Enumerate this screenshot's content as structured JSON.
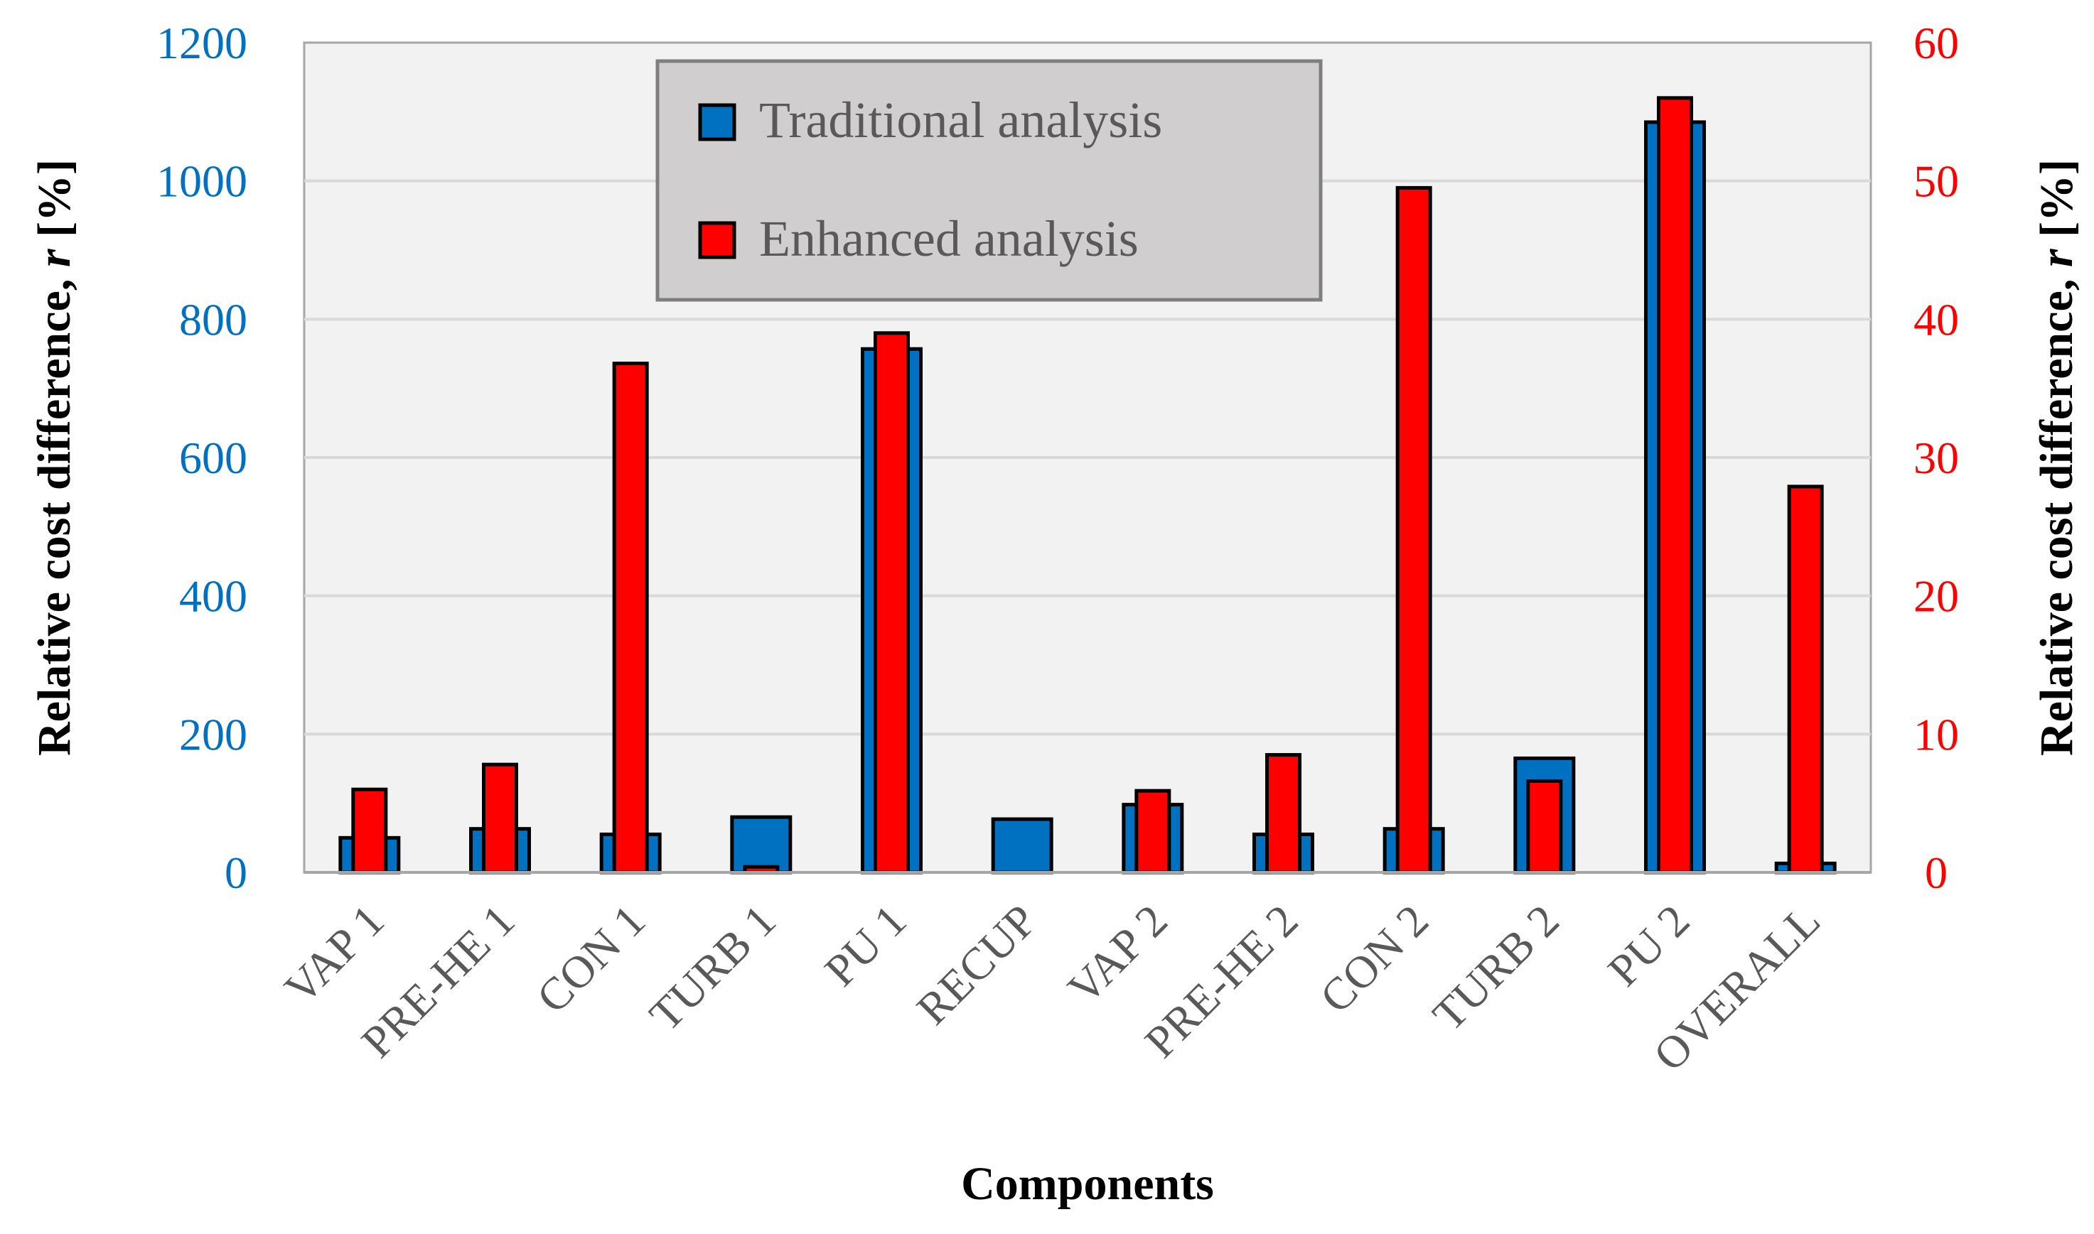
{
  "chart_data": {
    "type": "bar",
    "title": "",
    "xlabel": "Components",
    "ylabel_left": "Relative cost difference, r [%]",
    "ylabel_right": "Relative cost difference, r [%]",
    "ylabel_prefix": "Relative cost difference, ",
    "ylabel_italic": "r",
    "ylabel_suffix": " [%]",
    "categories": [
      "VAP 1",
      "PRE-HE 1",
      "CON 1",
      "TURB 1",
      "PU 1",
      "RECUP",
      "VAP 2",
      "PRE-HE 2",
      "CON 2",
      "TURB 2",
      "PU 2",
      "OVERALL"
    ],
    "ylim_left": [
      0,
      1200
    ],
    "ylim_right": [
      0,
      60
    ],
    "yticks_left": [
      "0",
      "200",
      "400",
      "600",
      "800",
      "1000",
      "1200"
    ],
    "yticks_right": [
      "0",
      "10",
      "20",
      "30",
      "40",
      "50",
      "60"
    ],
    "grid": true,
    "legend_position": "top-center",
    "series": [
      {
        "name": "Traditional analysis",
        "axis": "left",
        "color": "#0070c0",
        "values": [
          50,
          63,
          55,
          80,
          757,
          77,
          98,
          55,
          63,
          165,
          1085,
          13
        ]
      },
      {
        "name": "Enhanced analysis",
        "axis": "right",
        "color": "#ff0000",
        "values": [
          6.0,
          7.8,
          36.8,
          0.4,
          39.0,
          null,
          5.9,
          8.5,
          49.5,
          6.6,
          56.0,
          27.9
        ]
      }
    ]
  },
  "colors": {
    "plot_background": "#f2f2f2",
    "gridline": "#d9d9d9",
    "left_axis_text": "#0070c0",
    "right_axis_text": "#ff0000",
    "legend_background": "#d0cece",
    "legend_border": "#7f7f7f"
  }
}
